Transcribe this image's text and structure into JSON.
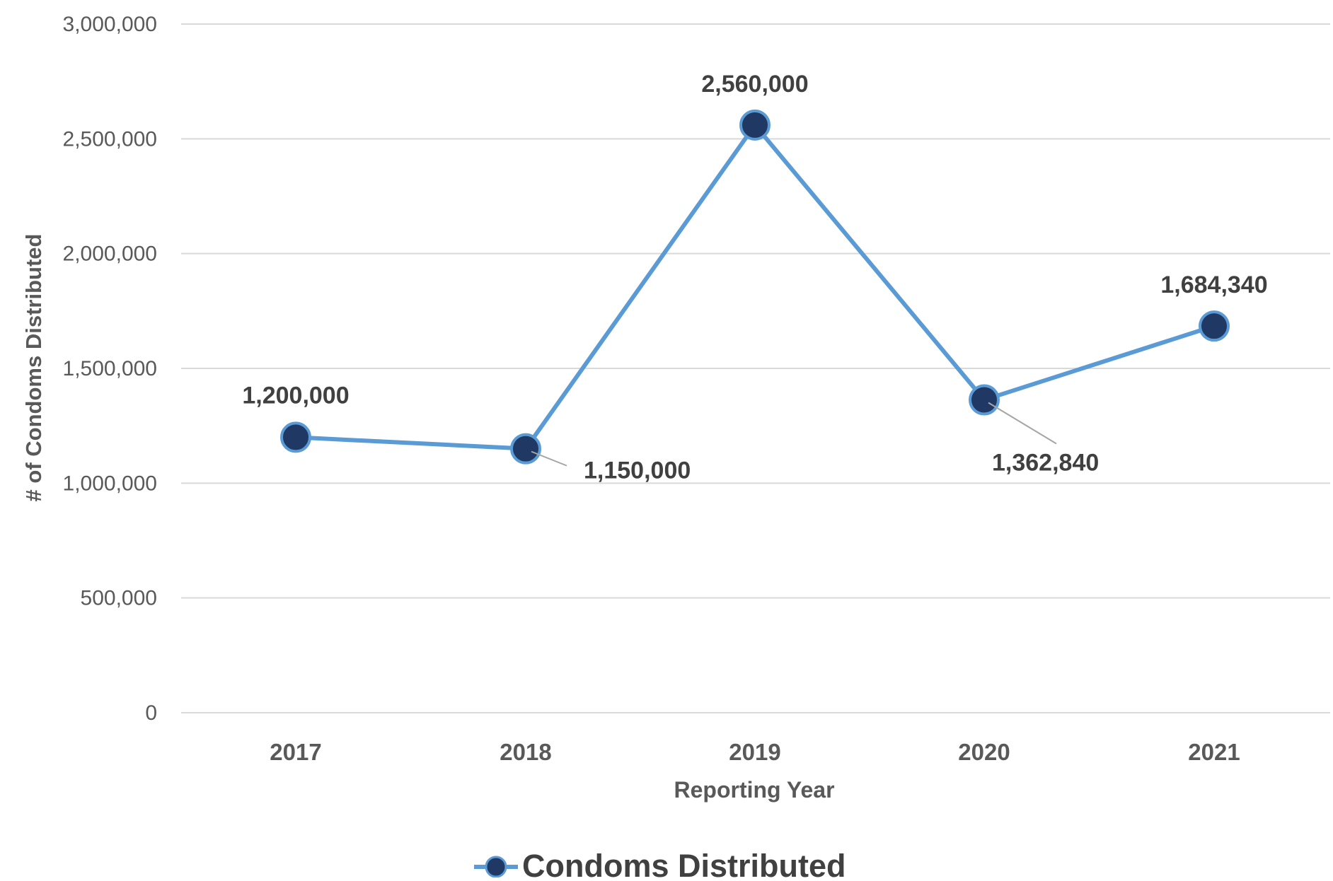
{
  "chart_data": {
    "type": "line",
    "title": "",
    "xlabel": "Reporting Year",
    "ylabel": "# of Condoms Distributed",
    "categories": [
      "2017",
      "2018",
      "2019",
      "2020",
      "2021"
    ],
    "series": [
      {
        "name": "Condoms Distributed",
        "values": [
          1200000,
          1150000,
          2560000,
          1362840,
          1684340
        ],
        "data_labels": [
          "1,200,000",
          "1,150,000",
          "2,560,000",
          "1,362,840",
          "1,684,340"
        ]
      }
    ],
    "ylim": [
      0,
      3000000
    ],
    "yticks": [
      0,
      500000,
      1000000,
      1500000,
      2000000,
      2500000,
      3000000
    ],
    "ytick_labels": [
      "0",
      "500,000",
      "1,000,000",
      "1,500,000",
      "2,000,000",
      "2,500,000",
      "3,000,000"
    ],
    "grid": "horizontal",
    "legend": "bottom",
    "colors": {
      "line": "#5B9BD5",
      "marker_fill": "#1F3864",
      "marker_edge": "#5B9BD5",
      "grid": "#D9D9D9",
      "tick_text": "#595959",
      "label_text": "#404040"
    }
  }
}
